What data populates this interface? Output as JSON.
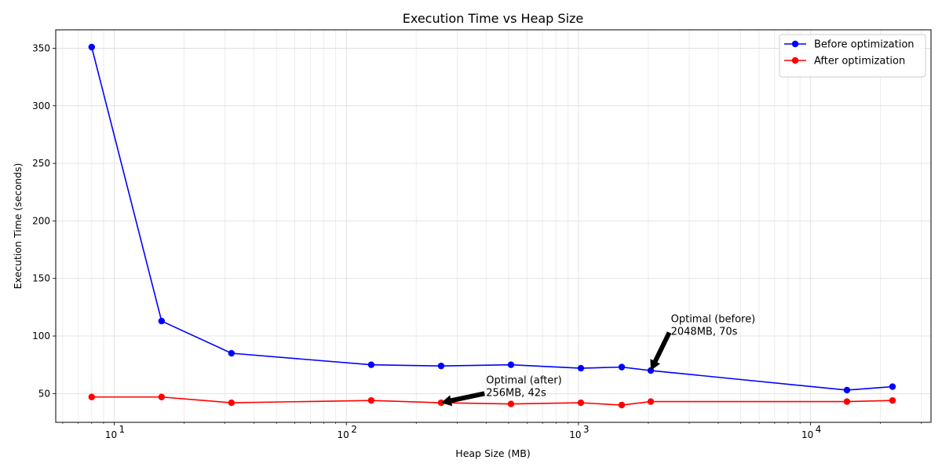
{
  "chart_data": {
    "type": "line",
    "title": "Execution Time vs Heap Size",
    "xlabel": "Heap Size (MB)",
    "ylabel": "Execution Time (seconds)",
    "xscale": "log",
    "xlim": [
      5.6,
      33000
    ],
    "ylim": [
      25,
      366
    ],
    "x_major_ticks": [
      10,
      100,
      1000,
      10000
    ],
    "x_major_tick_labels": [
      "10",
      "10",
      "10",
      "10"
    ],
    "x_major_tick_exponents": [
      "1",
      "2",
      "3",
      "4"
    ],
    "y_ticks": [
      50,
      100,
      150,
      200,
      250,
      300,
      350
    ],
    "y_tick_labels": [
      "50",
      "100",
      "150",
      "200",
      "250",
      "300",
      "350"
    ],
    "grid": true,
    "legend_position": "top-right",
    "series": [
      {
        "name": "Before optimization",
        "color": "#0000ff",
        "x": [
          8,
          16,
          32,
          128,
          256,
          512,
          1024,
          1536,
          2048,
          14336,
          22528
        ],
        "y": [
          351,
          113,
          85,
          75,
          74,
          75,
          72,
          73,
          70,
          53,
          56
        ]
      },
      {
        "name": "After optimization",
        "color": "#ff0000",
        "x": [
          8,
          16,
          32,
          128,
          256,
          512,
          1024,
          1536,
          2048,
          14336,
          22528
        ],
        "y": [
          47,
          47,
          42,
          44,
          42,
          41,
          42,
          40,
          43,
          43,
          44
        ]
      }
    ],
    "annotations": [
      {
        "lines": [
          "Optimal (before)",
          "2048MB, 70s"
        ],
        "point": [
          2048,
          70
        ],
        "text_at": [
          2500,
          101
        ]
      },
      {
        "lines": [
          "Optimal (after)",
          "256MB, 42s"
        ],
        "point": [
          256,
          42
        ],
        "text_at": [
          400,
          48
        ]
      }
    ]
  }
}
